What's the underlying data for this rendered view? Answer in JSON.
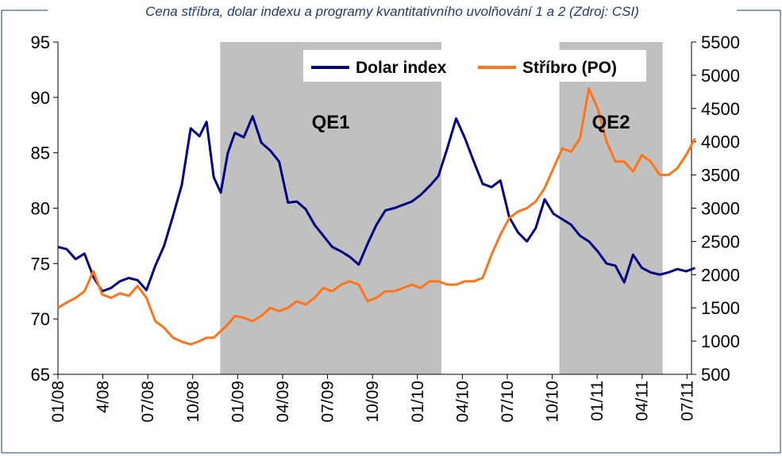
{
  "chart_data": {
    "type": "line",
    "title": "Cena stříbra, dolar indexu a programy kvantitativního uvolňování 1 a 2 (Zdroj: CSI)",
    "x_ticks": [
      "01/08",
      "4/08",
      "07/08",
      "10/08",
      "01/09",
      "04/09",
      "07/09",
      "10/09",
      "01/10",
      "04/10",
      "07/10",
      "10/10",
      "01/11",
      "04/11",
      "07/11"
    ],
    "y_left": {
      "range": [
        65,
        95
      ],
      "ticks": [
        "95",
        "90",
        "85",
        "80",
        "75",
        "70",
        "65"
      ]
    },
    "y_right": {
      "range": [
        500,
        5500
      ],
      "ticks": [
        "5500",
        "5000",
        "4500",
        "4000",
        "3500",
        "3000",
        "2500",
        "2000",
        "1500",
        "1000",
        "500"
      ]
    },
    "shaded_regions": [
      {
        "label": "QE1",
        "start": "2008-12",
        "end": "2010-03"
      },
      {
        "label": "QE2",
        "start": "2010-11",
        "end": "2011-06"
      }
    ],
    "legend": {
      "placement": "top-right"
    },
    "colors": {
      "dollar": "#000080",
      "silver": "#ff7417",
      "shade": "#c0c0c0"
    },
    "series": [
      {
        "name": "Dolar index",
        "axis": "left",
        "x": [
          2008.0,
          2008.05,
          2008.1,
          2008.15,
          2008.2,
          2008.25,
          2008.3,
          2008.35,
          2008.4,
          2008.45,
          2008.5,
          2008.55,
          2008.6,
          2008.65,
          2008.7,
          2008.75,
          2008.8,
          2008.84,
          2008.88,
          2008.92,
          2008.96,
          2009.0,
          2009.05,
          2009.1,
          2009.15,
          2009.2,
          2009.25,
          2009.3,
          2009.35,
          2009.4,
          2009.45,
          2009.5,
          2009.55,
          2009.6,
          2009.65,
          2009.7,
          2009.75,
          2009.8,
          2009.85,
          2009.9,
          2009.95,
          2010.0,
          2010.05,
          2010.1,
          2010.15,
          2010.2,
          2010.25,
          2010.3,
          2010.35,
          2010.4,
          2010.45,
          2010.5,
          2010.55,
          2010.6,
          2010.65,
          2010.7,
          2010.75,
          2010.8,
          2010.85,
          2010.9,
          2010.95,
          2011.0,
          2011.05,
          2011.1,
          2011.15,
          2011.2,
          2011.25,
          2011.3,
          2011.35,
          2011.4,
          2011.45,
          2011.5,
          2011.55,
          2011.6
        ],
        "values": [
          76.5,
          76.3,
          75.4,
          75.9,
          73.8,
          72.5,
          72.8,
          73.4,
          73.7,
          73.5,
          72.6,
          74.8,
          76.6,
          79.3,
          82.1,
          87.2,
          86.5,
          87.8,
          82.8,
          81.4,
          85.0,
          86.8,
          86.4,
          88.3,
          85.9,
          85.2,
          84.2,
          80.5,
          80.6,
          79.9,
          78.5,
          77.5,
          76.5,
          76.1,
          75.6,
          74.9,
          76.8,
          78.5,
          79.8,
          80.0,
          80.3,
          80.6,
          81.2,
          82.0,
          82.9,
          85.4,
          88.1,
          86.3,
          84.2,
          82.2,
          81.9,
          82.5,
          79.2,
          77.8,
          77.0,
          78.2,
          80.8,
          79.5,
          79.0,
          78.5,
          77.5,
          77.0,
          76.1,
          75.0,
          74.8,
          73.3,
          75.8,
          74.6,
          74.2,
          74.0,
          74.2,
          74.5,
          74.3,
          74.6
        ]
      },
      {
        "name": "Stříbro (PO)",
        "axis": "right",
        "x": [
          2008.0,
          2008.05,
          2008.1,
          2008.15,
          2008.2,
          2008.25,
          2008.3,
          2008.35,
          2008.4,
          2008.45,
          2008.5,
          2008.55,
          2008.6,
          2008.65,
          2008.7,
          2008.75,
          2008.8,
          2008.84,
          2008.88,
          2008.92,
          2008.96,
          2009.0,
          2009.05,
          2009.1,
          2009.15,
          2009.2,
          2009.25,
          2009.3,
          2009.35,
          2009.4,
          2009.45,
          2009.5,
          2009.55,
          2009.6,
          2009.65,
          2009.7,
          2009.75,
          2009.8,
          2009.85,
          2009.9,
          2009.95,
          2010.0,
          2010.05,
          2010.1,
          2010.15,
          2010.2,
          2010.25,
          2010.3,
          2010.35,
          2010.4,
          2010.45,
          2010.5,
          2010.55,
          2010.6,
          2010.65,
          2010.7,
          2010.75,
          2010.8,
          2010.85,
          2010.9,
          2010.95,
          2011.0,
          2011.05,
          2011.1,
          2011.15,
          2011.2,
          2011.25,
          2011.3,
          2011.35,
          2011.4,
          2011.45,
          2011.5,
          2011.55,
          2011.6
        ],
        "values": [
          1500,
          1580,
          1650,
          1750,
          2050,
          1700,
          1650,
          1720,
          1680,
          1830,
          1650,
          1300,
          1200,
          1050,
          990,
          950,
          1000,
          1050,
          1050,
          1150,
          1250,
          1380,
          1350,
          1300,
          1380,
          1500,
          1450,
          1500,
          1600,
          1550,
          1650,
          1800,
          1750,
          1850,
          1900,
          1850,
          1600,
          1650,
          1750,
          1750,
          1800,
          1850,
          1800,
          1900,
          1900,
          1850,
          1850,
          1900,
          1900,
          1950,
          2300,
          2600,
          2850,
          2950,
          3000,
          3100,
          3300,
          3600,
          3900,
          3850,
          4050,
          4800,
          4500,
          4000,
          3700,
          3700,
          3550,
          3800,
          3700,
          3500,
          3500,
          3600,
          3800,
          4050
        ]
      }
    ]
  }
}
